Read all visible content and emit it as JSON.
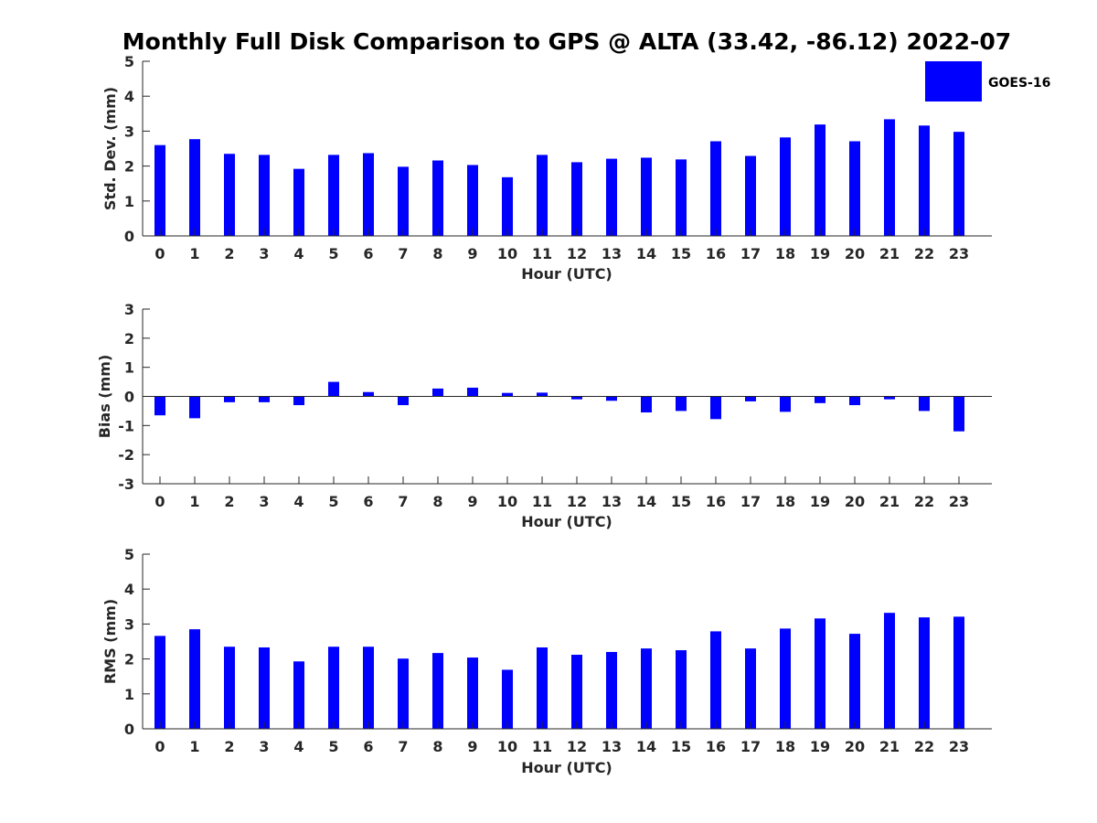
{
  "colors": {
    "bar": "#0000ff",
    "axis": "#262626",
    "background": "#ffffff"
  },
  "title": "Monthly Full Disk Comparison to GPS @ ALTA (33.42, -86.12) 2022-07",
  "legend": {
    "label": "GOES-16",
    "position": "top-right"
  },
  "chart_data": [
    {
      "type": "bar",
      "xlabel": "Hour (UTC)",
      "ylabel": "Std. Dev. (mm)",
      "ylim": [
        0,
        5
      ],
      "yticks": [
        "0",
        "1",
        "2",
        "3",
        "4",
        "5"
      ],
      "categories": [
        "0",
        "1",
        "2",
        "3",
        "4",
        "5",
        "6",
        "7",
        "8",
        "9",
        "10",
        "11",
        "12",
        "13",
        "14",
        "15",
        "16",
        "17",
        "18",
        "19",
        "20",
        "21",
        "22",
        "23"
      ],
      "series": [
        {
          "name": "GOES-16",
          "values": [
            2.6,
            2.77,
            2.35,
            2.32,
            1.92,
            2.32,
            2.37,
            1.98,
            2.16,
            2.03,
            1.68,
            2.32,
            2.11,
            2.21,
            2.24,
            2.19,
            2.71,
            2.29,
            2.82,
            3.19,
            2.71,
            3.34,
            3.16,
            2.98
          ]
        }
      ],
      "grid": false
    },
    {
      "type": "bar",
      "xlabel": "Hour (UTC)",
      "ylabel": "Bias (mm)",
      "ylim": [
        -3,
        3
      ],
      "yticks": [
        "-3",
        "-2",
        "-1",
        "0",
        "1",
        "2",
        "3"
      ],
      "categories": [
        "0",
        "1",
        "2",
        "3",
        "4",
        "5",
        "6",
        "7",
        "8",
        "9",
        "10",
        "11",
        "12",
        "13",
        "14",
        "15",
        "16",
        "17",
        "18",
        "19",
        "20",
        "21",
        "22",
        "23"
      ],
      "series": [
        {
          "name": "GOES-16",
          "values": [
            -0.65,
            -0.75,
            -0.2,
            -0.2,
            -0.3,
            0.5,
            0.15,
            -0.3,
            0.27,
            0.3,
            0.12,
            0.13,
            -0.1,
            -0.15,
            -0.55,
            -0.5,
            -0.78,
            -0.17,
            -0.53,
            -0.23,
            -0.3,
            -0.1,
            -0.5,
            -1.2
          ]
        }
      ],
      "grid": false
    },
    {
      "type": "bar",
      "xlabel": "Hour (UTC)",
      "ylabel": "RMS (mm)",
      "ylim": [
        0,
        5
      ],
      "yticks": [
        "0",
        "1",
        "2",
        "3",
        "4",
        "5"
      ],
      "categories": [
        "0",
        "1",
        "2",
        "3",
        "4",
        "5",
        "6",
        "7",
        "8",
        "9",
        "10",
        "11",
        "12",
        "13",
        "14",
        "15",
        "16",
        "17",
        "18",
        "19",
        "20",
        "21",
        "22",
        "23"
      ],
      "series": [
        {
          "name": "GOES-16",
          "values": [
            2.66,
            2.85,
            2.35,
            2.33,
            1.93,
            2.35,
            2.35,
            2.01,
            2.17,
            2.04,
            1.69,
            2.33,
            2.12,
            2.2,
            2.3,
            2.25,
            2.79,
            2.3,
            2.87,
            3.16,
            2.72,
            3.32,
            3.19,
            3.21
          ]
        }
      ],
      "grid": false
    }
  ]
}
